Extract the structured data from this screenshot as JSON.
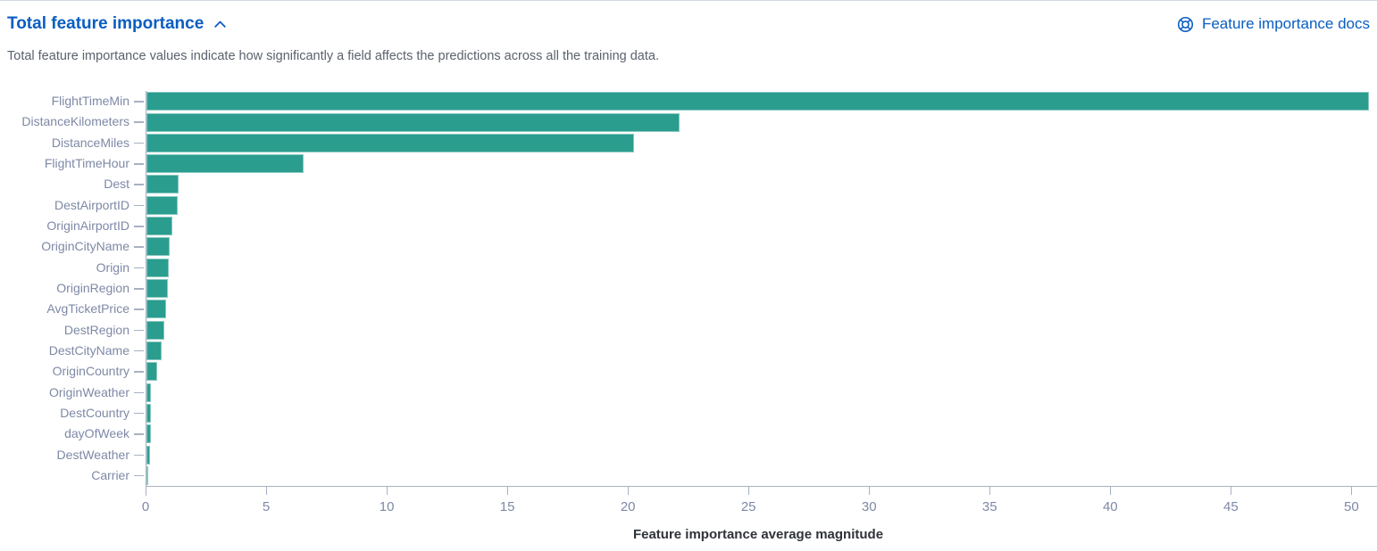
{
  "header": {
    "title": "Total feature importance",
    "collapse_icon": "chevron-up",
    "docs_link": {
      "icon": "help-ring",
      "label": "Feature importance docs"
    }
  },
  "description": "Total feature importance values indicate how significantly a field affects the predictions across all the training data.",
  "colors": {
    "link_blue": "#0a5dc2",
    "bar_teal": "#2a9d8f",
    "axis_line": "#a8b1c2",
    "tick_label": "#7e89a6",
    "axis_title": "#2f3338",
    "description_text": "#5b616e",
    "panel_top_border": "#d3dae6"
  },
  "chart_data": {
    "type": "bar",
    "orientation": "horizontal",
    "title": "",
    "xlabel": "Feature importance average magnitude",
    "ylabel": "",
    "categories": [
      "FlightTimeMin",
      "DistanceKilometers",
      "DistanceMiles",
      "FlightTimeHour",
      "Dest",
      "DestAirportID",
      "OriginAirportID",
      "OriginCityName",
      "Origin",
      "OriginRegion",
      "AvgTicketPrice",
      "DestRegion",
      "DestCityName",
      "OriginCountry",
      "OriginWeather",
      "DestCountry",
      "dayOfWeek",
      "DestWeather",
      "Carrier"
    ],
    "values": [
      50.7,
      22.1,
      20.2,
      6.5,
      1.35,
      1.3,
      1.07,
      0.96,
      0.94,
      0.88,
      0.83,
      0.74,
      0.63,
      0.44,
      0.2,
      0.2,
      0.18,
      0.16,
      0.06
    ],
    "x_ticks": [
      0,
      5,
      10,
      15,
      20,
      25,
      30,
      35,
      40,
      45,
      50
    ],
    "xlim": [
      0,
      50.8
    ],
    "grid": false,
    "legend": "none"
  }
}
